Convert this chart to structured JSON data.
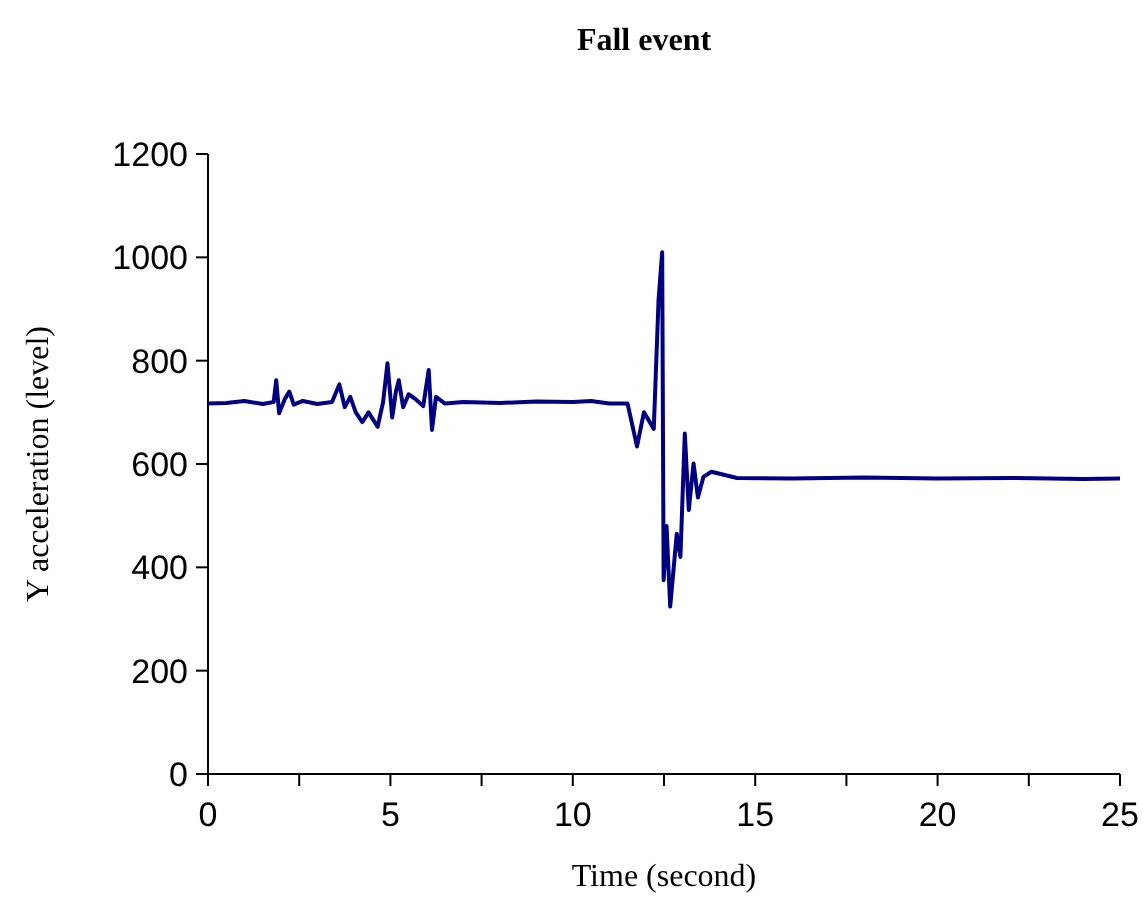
{
  "chart_data": {
    "type": "line",
    "title": "Fall event",
    "xlabel": "Time (second)",
    "ylabel": "Y acceleration (level)",
    "xlim": [
      0,
      25
    ],
    "xticks": [
      0,
      {
        "value": 2.5,
        "label": null
      },
      5,
      {
        "value": 7.5,
        "label": null
      },
      10,
      {
        "value": 12.5,
        "label": null
      },
      15,
      {
        "value": 17.5,
        "label": null
      },
      20,
      {
        "value": 22.5,
        "label": null
      },
      25
    ],
    "ylim": [
      0,
      1200
    ],
    "yticks": [
      0,
      200,
      400,
      600,
      800,
      1000,
      1200
    ],
    "grid": false,
    "marker": "none",
    "line_style": "solid",
    "series": [
      {
        "color": "#000080",
        "x": [
          0,
          0.5,
          1,
          1.5,
          1.8,
          1.87,
          1.95,
          2.1,
          2.23,
          2.35,
          2.6,
          3,
          3.4,
          3.6,
          3.75,
          3.9,
          4.05,
          4.23,
          4.4,
          4.65,
          4.8,
          4.92,
          5.05,
          5.15,
          5.23,
          5.35,
          5.5,
          5.7,
          5.9,
          6.05,
          6.14,
          6.25,
          6.5,
          7,
          8,
          9,
          10,
          10.5,
          11,
          11.5,
          11.76,
          11.95,
          12.22,
          12.35,
          12.45,
          12.49,
          12.57,
          12.67,
          12.85,
          12.95,
          13.07,
          13.18,
          13.31,
          13.43,
          13.58,
          13.8,
          14.5,
          16,
          18,
          20,
          22,
          24,
          25
        ],
        "values": [
          717,
          718,
          722,
          716,
          720,
          762,
          698,
          725,
          740,
          715,
          722,
          716,
          720,
          754,
          710,
          730,
          700,
          681,
          700,
          672,
          720,
          795,
          690,
          740,
          762,
          710,
          735,
          725,
          712,
          782,
          666,
          730,
          717,
          720,
          718,
          721,
          720,
          722,
          717,
          717,
          634,
          700,
          668,
          917,
          1010,
          375,
          480,
          324,
          465,
          420,
          659,
          511,
          601,
          535,
          575,
          585,
          573,
          572,
          574,
          572,
          573,
          571,
          572
        ]
      }
    ]
  }
}
